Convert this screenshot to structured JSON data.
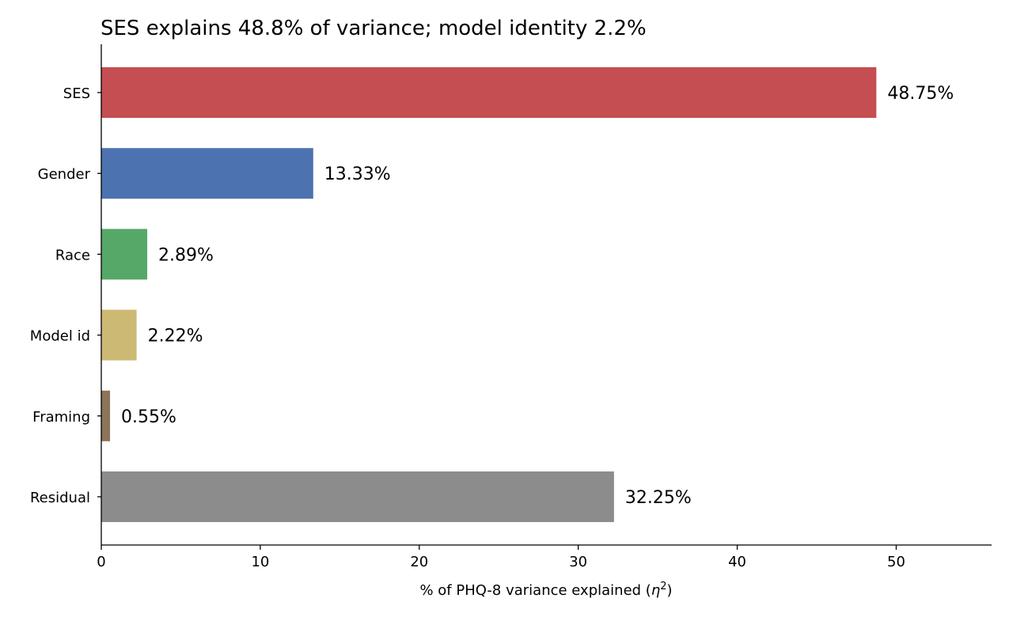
{
  "chart_data": {
    "type": "bar",
    "orientation": "horizontal",
    "title": "SES explains 48.8% of variance; model identity 2.2%",
    "xlabel": "% of PHQ-8 variance explained (η²)",
    "xlabel_prefix": "% of PHQ-8 variance explained (",
    "xlabel_symbol": "η",
    "xlabel_exponent": "2",
    "xlabel_suffix": ")",
    "ylabel": "",
    "xlim": [
      0,
      56
    ],
    "xticks": [
      0,
      10,
      20,
      30,
      40,
      50
    ],
    "grid": false,
    "categories": [
      "SES",
      "Gender",
      "Race",
      "Model id",
      "Framing",
      "Residual"
    ],
    "values": [
      48.75,
      13.33,
      2.89,
      2.22,
      0.55,
      32.25
    ],
    "data_labels": [
      "48.75%",
      "13.33%",
      "2.89%",
      "2.22%",
      "0.55%",
      "32.25%"
    ],
    "colors": [
      "#c44e52",
      "#4c72b0",
      "#55a868",
      "#ccb974",
      "#8c7459",
      "#8c8c8c"
    ]
  }
}
